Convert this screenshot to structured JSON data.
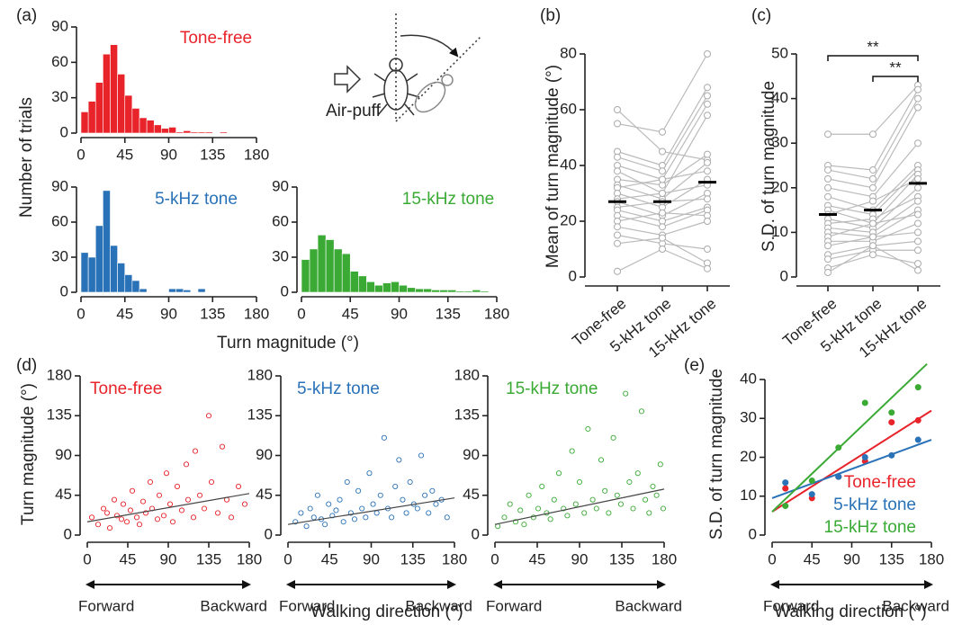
{
  "chart_data": [
    {
      "type": "histogram",
      "panel": "(a)",
      "title": "Tone-free",
      "color": "#e8232a",
      "ylabel": "Number of trials",
      "bins": [
        0,
        7.5,
        15,
        22.5,
        30,
        37.5,
        45,
        52.5,
        60,
        67.5,
        75,
        82.5,
        90,
        97.5,
        105,
        112.5,
        120,
        127.5,
        135,
        142.5,
        150,
        157.5,
        165,
        172.5,
        180
      ],
      "values": [
        18,
        27,
        43,
        67,
        75,
        50,
        32,
        21,
        13,
        11,
        7,
        4,
        5,
        1,
        2,
        1,
        1,
        1,
        0,
        1,
        0,
        0,
        0,
        0
      ],
      "xlim": [
        0,
        180
      ],
      "xticks": [
        0,
        45,
        90,
        135,
        180
      ],
      "ylim": [
        0,
        90
      ],
      "yticks": [
        0,
        30,
        60,
        90
      ]
    },
    {
      "type": "histogram",
      "title": "5-kHz tone",
      "color": "#2a72b8",
      "xlabel": "Turn magnitude (°)",
      "bins": [
        0,
        7.5,
        15,
        22.5,
        30,
        37.5,
        45,
        52.5,
        60,
        67.5,
        75,
        82.5,
        90,
        97.5,
        105,
        112.5,
        120,
        127.5,
        135,
        142.5,
        150,
        157.5,
        165,
        172.5,
        180
      ],
      "values": [
        34,
        30,
        57,
        87,
        40,
        25,
        15,
        10,
        3,
        0,
        0,
        0,
        3,
        3,
        2,
        0,
        3,
        0,
        0,
        0,
        0,
        0,
        0,
        0
      ],
      "xlim": [
        0,
        180
      ],
      "xticks": [
        0,
        45,
        90,
        135,
        180
      ],
      "ylim": [
        0,
        90
      ],
      "yticks": [
        0,
        30,
        60,
        90
      ]
    },
    {
      "type": "histogram",
      "title": "15-kHz tone",
      "color": "#3aaa35",
      "annotation": "Air-puff",
      "bins": [
        0,
        7.5,
        15,
        22.5,
        30,
        37.5,
        45,
        52.5,
        60,
        67.5,
        75,
        82.5,
        90,
        97.5,
        105,
        112.5,
        120,
        127.5,
        135,
        142.5,
        150,
        157.5,
        165,
        172.5,
        180
      ],
      "values": [
        28,
        37,
        49,
        45,
        37,
        33,
        18,
        14,
        9,
        6,
        8,
        9,
        6,
        4,
        3,
        3,
        2,
        2,
        2,
        1,
        1,
        2,
        1,
        0
      ],
      "xlim": [
        0,
        180
      ],
      "xticks": [
        0,
        45,
        90,
        135,
        180
      ],
      "ylim": [
        0,
        90
      ],
      "yticks": [
        0,
        30,
        60,
        90
      ]
    },
    {
      "type": "paired",
      "panel": "(b)",
      "ylabel": "Mean of turn magnitude (°)",
      "color": "#bbbbbb",
      "categories": [
        "Tone-free",
        "5-kHz tone",
        "15-kHz tone"
      ],
      "series": [
        {
          "values": [
            60,
            45,
            42
          ]
        },
        {
          "values": [
            55,
            52,
            80
          ]
        },
        {
          "values": [
            45,
            40,
            68
          ]
        },
        {
          "values": [
            43,
            38,
            65
          ]
        },
        {
          "values": [
            40,
            35,
            62
          ]
        },
        {
          "values": [
            38,
            30,
            58
          ]
        },
        {
          "values": [
            35,
            33,
            44
          ]
        },
        {
          "values": [
            33,
            28,
            41
          ]
        },
        {
          "values": [
            32,
            35,
            38
          ]
        },
        {
          "values": [
            30,
            25,
            35
          ]
        },
        {
          "values": [
            28,
            30,
            33
          ]
        },
        {
          "values": [
            27,
            22,
            30
          ]
        },
        {
          "values": [
            25,
            27,
            28
          ]
        },
        {
          "values": [
            24,
            20,
            25
          ]
        },
        {
          "values": [
            22,
            18,
            24
          ]
        },
        {
          "values": [
            20,
            23,
            22
          ]
        },
        {
          "values": [
            18,
            15,
            20
          ]
        },
        {
          "values": [
            15,
            12,
            10
          ]
        },
        {
          "values": [
            12,
            14,
            5
          ]
        },
        {
          "values": [
            2,
            10,
            3
          ]
        }
      ],
      "means": [
        27,
        27,
        34
      ],
      "ylim": [
        0,
        80
      ],
      "yticks": [
        0,
        20,
        40,
        60,
        80
      ]
    },
    {
      "type": "paired",
      "panel": "(c)",
      "ylabel": "S.D. of turn magnitude",
      "color": "#bbbbbb",
      "categories": [
        "Tone-free",
        "5-kHz tone",
        "15-kHz tone"
      ],
      "series": [
        {
          "values": [
            32,
            32,
            43
          ]
        },
        {
          "values": [
            25,
            24,
            42
          ]
        },
        {
          "values": [
            24,
            22,
            40
          ]
        },
        {
          "values": [
            22,
            20,
            38
          ]
        },
        {
          "values": [
            20,
            18,
            30
          ]
        },
        {
          "values": [
            18,
            15,
            25
          ]
        },
        {
          "values": [
            16,
            14,
            24
          ]
        },
        {
          "values": [
            15,
            12,
            23
          ]
        },
        {
          "values": [
            14,
            17,
            22
          ]
        },
        {
          "values": [
            13,
            11,
            20
          ]
        },
        {
          "values": [
            12,
            13,
            18
          ]
        },
        {
          "values": [
            11,
            10,
            17
          ]
        },
        {
          "values": [
            10,
            9,
            15
          ]
        },
        {
          "values": [
            9,
            12,
            14
          ]
        },
        {
          "values": [
            8,
            8,
            12
          ]
        },
        {
          "values": [
            7,
            9,
            10
          ]
        },
        {
          "values": [
            5,
            7,
            8
          ]
        },
        {
          "values": [
            4,
            6,
            6
          ]
        },
        {
          "values": [
            2,
            5,
            3
          ]
        },
        {
          "values": [
            1,
            7,
            1.5
          ]
        }
      ],
      "means": [
        14,
        15,
        21
      ],
      "ylim": [
        0,
        50
      ],
      "yticks": [
        0,
        10,
        20,
        30,
        40,
        50
      ],
      "annotations": [
        {
          "text": "**",
          "from": 0,
          "to": 2
        },
        {
          "text": "**",
          "from": 1,
          "to": 2
        }
      ]
    },
    {
      "type": "scatter",
      "panel": "(d)",
      "title": "Tone-free",
      "color": "#e8232a",
      "ylabel": "Turn magnitude (°)",
      "direction_labels": [
        "Forward",
        "Backward"
      ],
      "x": [
        5,
        12,
        18,
        22,
        25,
        30,
        33,
        38,
        40,
        44,
        48,
        50,
        55,
        58,
        62,
        65,
        70,
        72,
        78,
        80,
        85,
        88,
        92,
        95,
        100,
        105,
        110,
        112,
        118,
        120,
        125,
        130,
        135,
        138,
        145,
        150,
        155,
        160,
        168,
        175
      ],
      "values": [
        20,
        12,
        30,
        25,
        8,
        40,
        22,
        18,
        35,
        15,
        28,
        50,
        20,
        12,
        38,
        25,
        60,
        30,
        18,
        45,
        22,
        70,
        35,
        15,
        55,
        28,
        80,
        40,
        20,
        95,
        45,
        30,
        135,
        60,
        25,
        100,
        40,
        20,
        55,
        35
      ],
      "fit": {
        "x": [
          0,
          180
        ],
        "y": [
          15,
          47
        ]
      },
      "xlim": [
        0,
        180
      ],
      "xticks": [
        0,
        45,
        90,
        135,
        180
      ],
      "ylim": [
        0,
        180
      ],
      "yticks": [
        0,
        45,
        90,
        135,
        180
      ]
    },
    {
      "type": "scatter",
      "title": "5-kHz tone",
      "color": "#2a72b8",
      "xlabel": "Walking direction (°)",
      "direction_labels": [
        "Forward",
        "Backward"
      ],
      "x": [
        8,
        14,
        20,
        24,
        28,
        32,
        36,
        40,
        44,
        48,
        52,
        56,
        60,
        64,
        68,
        72,
        76,
        80,
        84,
        88,
        92,
        96,
        100,
        104,
        108,
        112,
        116,
        120,
        124,
        128,
        132,
        136,
        140,
        144,
        148,
        152,
        156,
        160,
        166,
        172
      ],
      "values": [
        15,
        25,
        10,
        30,
        20,
        45,
        18,
        12,
        35,
        22,
        28,
        40,
        15,
        60,
        25,
        18,
        50,
        30,
        20,
        70,
        35,
        25,
        45,
        110,
        30,
        20,
        55,
        85,
        40,
        25,
        60,
        35,
        30,
        90,
        45,
        25,
        50,
        35,
        40,
        20
      ],
      "fit": {
        "x": [
          0,
          180
        ],
        "y": [
          12,
          42
        ]
      },
      "xlim": [
        0,
        180
      ],
      "xticks": [
        0,
        45,
        90,
        135,
        180
      ],
      "ylim": [
        0,
        180
      ],
      "yticks": [
        0,
        45,
        90,
        135,
        180
      ]
    },
    {
      "type": "scatter",
      "title": "15-kHz tone",
      "color": "#3aaa35",
      "direction_labels": [
        "Forward",
        "Backward"
      ],
      "x": [
        3,
        10,
        16,
        22,
        27,
        31,
        36,
        41,
        46,
        50,
        55,
        59,
        63,
        68,
        73,
        77,
        82,
        86,
        90,
        95,
        99,
        104,
        108,
        113,
        117,
        121,
        126,
        130,
        134,
        139,
        143,
        147,
        152,
        156,
        160,
        164,
        168,
        172,
        176,
        179
      ],
      "values": [
        10,
        20,
        35,
        15,
        28,
        12,
        45,
        20,
        30,
        55,
        25,
        18,
        40,
        70,
        30,
        22,
        95,
        35,
        60,
        25,
        120,
        40,
        30,
        85,
        50,
        25,
        110,
        45,
        35,
        160,
        60,
        30,
        70,
        140,
        40,
        25,
        55,
        45,
        80,
        30
      ],
      "fit": {
        "x": [
          0,
          180
        ],
        "y": [
          12,
          52
        ]
      },
      "xlim": [
        0,
        180
      ],
      "xticks": [
        0,
        45,
        90,
        135,
        180
      ],
      "ylim": [
        0,
        180
      ],
      "yticks": [
        0,
        45,
        90,
        135,
        180
      ]
    },
    {
      "type": "multi_scatter",
      "panel": "(e)",
      "ylabel": "S.D. of turn magnitude",
      "xlabel": "Walking direction (°)",
      "direction_labels": [
        "Forward",
        "Backward"
      ],
      "series": [
        {
          "name": "Tone-free",
          "color": "#e8232a",
          "x": [
            15,
            45,
            75,
            105,
            135,
            165
          ],
          "values": [
            12,
            9.5,
            15,
            19,
            29,
            29.5
          ],
          "fit": {
            "x": [
              0,
              180
            ],
            "y": [
              6,
              32
            ]
          }
        },
        {
          "name": "5-kHz tone",
          "color": "#2a72b8",
          "x": [
            15,
            45,
            75,
            105,
            135,
            165
          ],
          "values": [
            13.5,
            10.5,
            15,
            20,
            20.5,
            24.5
          ],
          "fit": {
            "x": [
              0,
              180
            ],
            "y": [
              9.5,
              24.5
            ]
          }
        },
        {
          "name": "15-kHz tone",
          "color": "#3aaa35",
          "x": [
            15,
            45,
            75,
            105,
            135,
            165
          ],
          "values": [
            7.5,
            14,
            22.5,
            34,
            31.5,
            38
          ],
          "fit": {
            "x": [
              0,
              175
            ],
            "y": [
              6,
              44
            ]
          }
        }
      ],
      "xlim": [
        0,
        180
      ],
      "xticks": [
        0,
        45,
        90,
        135,
        180
      ],
      "ylim": [
        0,
        40
      ],
      "yticks": [
        0,
        10,
        20,
        30,
        40
      ]
    }
  ]
}
